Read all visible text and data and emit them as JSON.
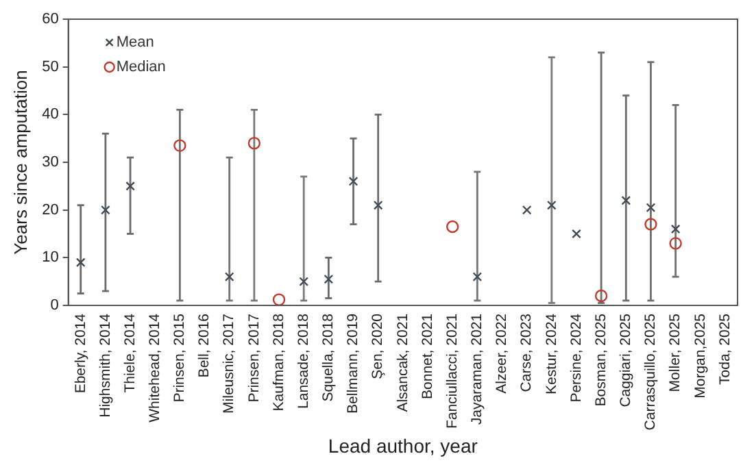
{
  "chart_data": {
    "type": "scatter",
    "xlabel": "Lead author, year",
    "ylabel": "Years since amputation",
    "categories": [
      "Eberly, 2014",
      "Highsmith, 2014",
      "Thiele, 2014",
      "Whitehead, 2014",
      "Prinsen, 2015",
      "Bell, 2016",
      "Mileusnic, 2017",
      "Prinsen, 2017",
      "Kaufman, 2018",
      "Lansade, 2018",
      "Squella, 2018",
      "Bellmann, 2019",
      "Şen, 2020",
      "Alsancak, 2021",
      "Bonnet, 2021",
      "Fanciullacci, 2021",
      "Jayaraman, 2021",
      "Alzeer, 2022",
      "Carse, 2023",
      "Kestur, 2024",
      "Persine, 2024",
      "Bosman, 2025",
      "Caggiari, 2025",
      "Carrasquillo, 2025",
      "Moller, 2025",
      "Morgan,2025",
      "Toda, 2025"
    ],
    "series": [
      {
        "name": "Mean",
        "color": "#3f4a55",
        "marker": "cross",
        "values": [
          9,
          20,
          25,
          null,
          null,
          null,
          6,
          null,
          null,
          5,
          5.5,
          26,
          21,
          null,
          null,
          null,
          6,
          null,
          20,
          21,
          15,
          null,
          22,
          20.5,
          16,
          null,
          null
        ],
        "errors": [
          [
            2.5,
            21
          ],
          [
            3,
            36
          ],
          [
            15,
            31
          ],
          null,
          null,
          null,
          [
            1,
            31
          ],
          null,
          null,
          [
            1,
            27
          ],
          [
            1.5,
            10
          ],
          [
            17,
            35
          ],
          [
            5,
            40
          ],
          null,
          null,
          null,
          [
            1,
            28
          ],
          null,
          null,
          [
            0.5,
            52
          ],
          null,
          null,
          [
            1,
            44
          ],
          [
            1,
            51
          ],
          [
            6,
            42
          ],
          null,
          null
        ]
      },
      {
        "name": "Median",
        "color": "#c0392b",
        "marker": "circle",
        "values": [
          null,
          null,
          null,
          null,
          33.5,
          null,
          null,
          34,
          1.2,
          null,
          null,
          null,
          null,
          null,
          null,
          16.5,
          null,
          null,
          null,
          null,
          null,
          2,
          null,
          17,
          13,
          null,
          null
        ],
        "errors": [
          null,
          null,
          null,
          null,
          [
            1,
            41
          ],
          null,
          null,
          [
            1,
            41
          ],
          null,
          null,
          null,
          null,
          null,
          null,
          null,
          null,
          null,
          null,
          null,
          null,
          null,
          [
            0.5,
            53
          ],
          null,
          null,
          null,
          null,
          null
        ]
      }
    ],
    "ylim": [
      0,
      60
    ],
    "yticks": [
      0,
      10,
      20,
      30,
      40,
      50,
      60
    ],
    "grid": false,
    "legend": "top left"
  }
}
